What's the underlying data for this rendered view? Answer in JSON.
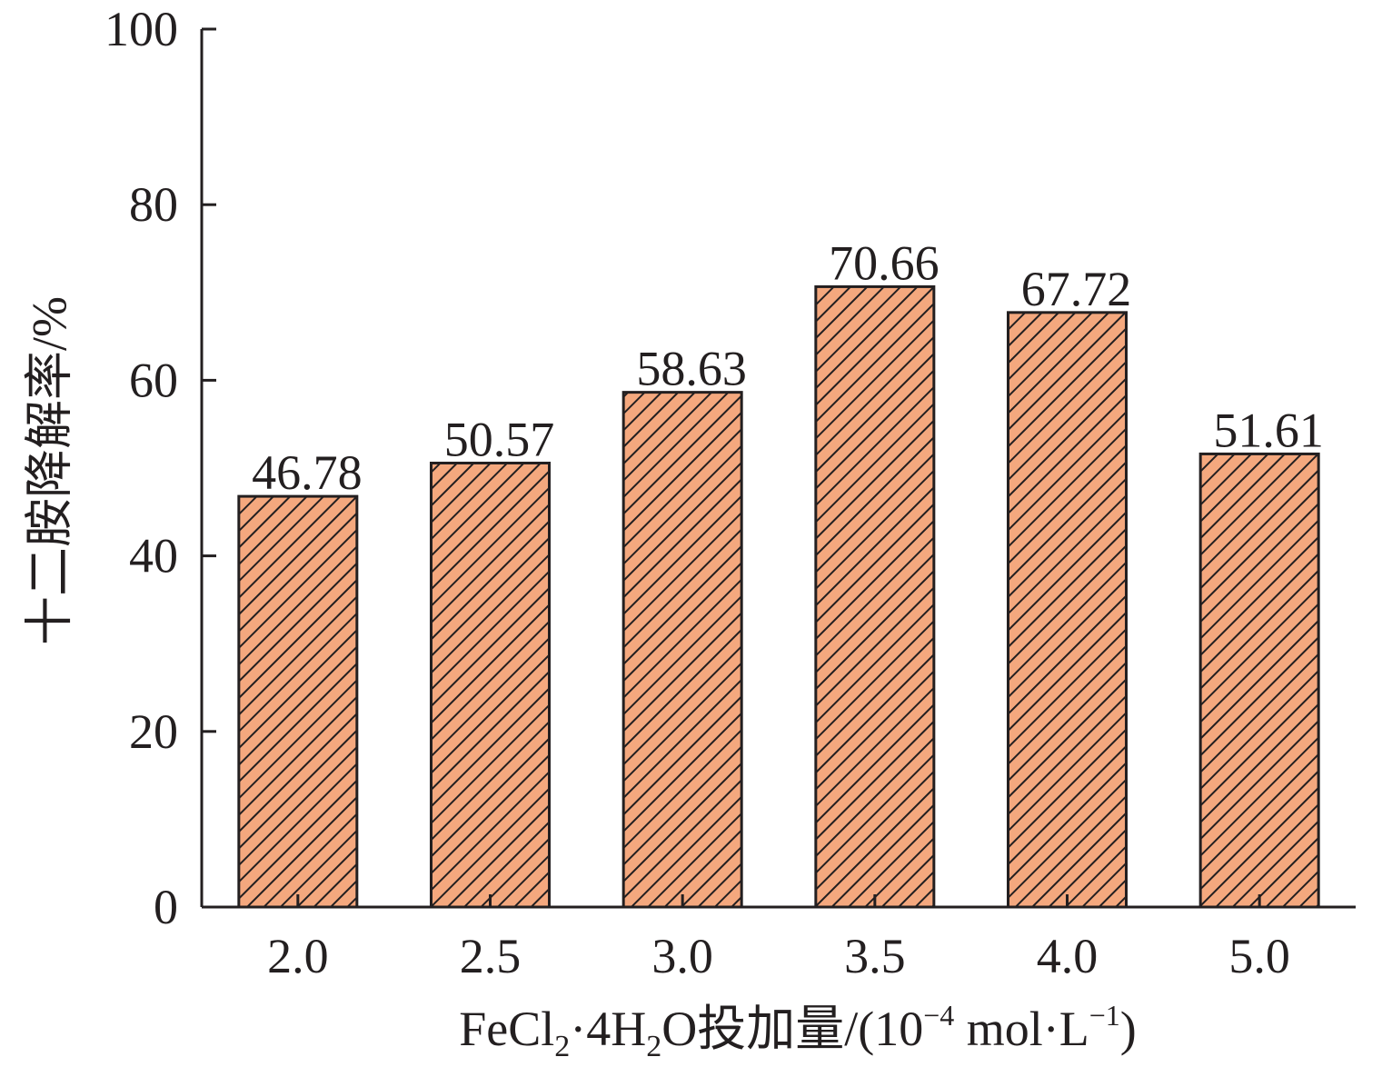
{
  "colors": {
    "bar_fill": "#f4a87e",
    "hatch": "#231f20",
    "axis": "#231f20",
    "text": "#231f20"
  },
  "chart_data": {
    "type": "bar",
    "categories": [
      "2.0",
      "2.5",
      "3.0",
      "3.5",
      "4.0",
      "5.0"
    ],
    "values": [
      46.78,
      50.57,
      58.63,
      70.66,
      67.72,
      51.61
    ],
    "value_labels": [
      "46.78",
      "50.57",
      "58.63",
      "70.66",
      "67.72",
      "51.61"
    ],
    "ylim": [
      0,
      100
    ],
    "yticks": [
      0,
      20,
      40,
      60,
      80,
      100
    ],
    "ytick_labels": [
      "0",
      "20",
      "40",
      "60",
      "80",
      "100"
    ],
    "ylabel": "十二胺降解率/%",
    "xlabel": {
      "part1": "FeCl",
      "sub1": "2",
      "part2": "·4H",
      "sub2": "2",
      "part3": "O投加量/(10",
      "sup1": "−4",
      "part4": " mol·L",
      "sup2": "−1",
      "part5": ")"
    },
    "grid": false,
    "legend": "none",
    "bar_pattern": "diagonal hatch"
  }
}
